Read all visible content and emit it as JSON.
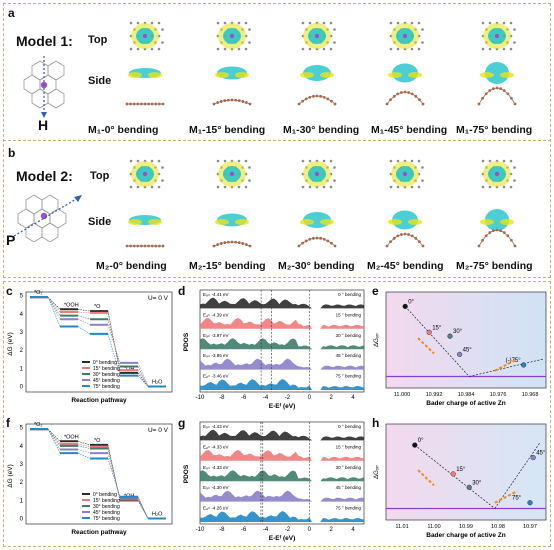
{
  "panels": {
    "a": {
      "letter": "a",
      "model_title": "Model 1:",
      "row_top": "Top",
      "row_side": "Side",
      "axis_letter": "H",
      "captions": [
        "M₁-0° bending",
        "M₁-15° bending",
        "M₁-30° bending",
        "M₁-45° bending",
        "M₁-75° bending"
      ]
    },
    "b": {
      "letter": "b",
      "model_title": "Model 2:",
      "row_top": "Top",
      "row_side": "Side",
      "axis_letter": "P",
      "captions": [
        "M₂-0° bending",
        "M₂-15° bending",
        "M₂-30° bending",
        "M₂-45° bending",
        "M₂-75° bending"
      ]
    },
    "c": {
      "letter": "c",
      "potential": "U= 0 V",
      "ylabel": "ΔG (eV)",
      "xlabel": "Reaction pathway",
      "species": [
        "*O₂",
        "*OOH",
        "*O",
        "*OH",
        "H₂O"
      ],
      "yticks": [
        "5",
        "4",
        "3",
        "2",
        "1",
        "0"
      ],
      "legend": [
        "0° bending",
        "15° bending",
        "30° bending",
        "45° bending",
        "75° bending"
      ]
    },
    "d": {
      "letter": "d",
      "ylabel": "PDOS",
      "xlabel": "E-Eᶠ (eV)",
      "xticks": [
        "-10",
        "-8",
        "-6",
        "-4",
        "-2",
        "0",
        "2",
        "4"
      ],
      "traces": [
        {
          "label": "0 ° bending",
          "ed": "Eₔ= -4.41 eV"
        },
        {
          "label": "15 ° bending",
          "ed": "Eₔ= -4.39 eV"
        },
        {
          "label": "30 ° bending",
          "ed": "Eₔ= -3.97 eV"
        },
        {
          "label": "45 ° bending",
          "ed": "Eₔ= -3.86 eV"
        },
        {
          "label": "75 ° bending",
          "ed": "Eₔ= -3.46 eV"
        }
      ]
    },
    "e": {
      "letter": "e",
      "ylabel": "ΔGₒᵣᵣ",
      "xlabel": "Bader charge of active Zn",
      "xticks": [
        "11.000",
        "10.992",
        "10.984",
        "10.976",
        "10.968"
      ],
      "points": [
        "0°",
        "15°",
        "30°",
        "45°",
        "(-)75°"
      ]
    },
    "f": {
      "letter": "f",
      "potential": "U= 0 V",
      "ylabel": "ΔG (eV)",
      "xlabel": "Reaction pathway",
      "species": [
        "*O₂",
        "*OOH",
        "*O",
        "*OH",
        "H₂O"
      ],
      "yticks": [
        "5",
        "4",
        "3",
        "2",
        "1",
        "0"
      ],
      "legend": [
        "0° bending",
        "15° bending",
        "30° bending",
        "45° bending",
        "75° bending"
      ]
    },
    "g": {
      "letter": "g",
      "ylabel": "PDOS",
      "xlabel": "E-Eᶠ (eV)",
      "xticks": [
        "-10",
        "-8",
        "-6",
        "-4",
        "-2",
        "0",
        "2",
        "4"
      ],
      "traces": [
        {
          "label": "0 ° bending",
          "ed": "Eₔ= -4.43 eV"
        },
        {
          "label": "15 ° bending",
          "ed": "Eₔ= -4.33 eV"
        },
        {
          "label": "30 ° bending",
          "ed": "Eₔ= -4.33 eV"
        },
        {
          "label": "45 ° bending",
          "ed": "Eₔ= -4.30 eV"
        },
        {
          "label": "75 ° bending",
          "ed": "Eₔ= -4.26 eV"
        }
      ]
    },
    "h": {
      "letter": "h",
      "ylabel": "ΔGₒᵣᵣ",
      "xlabel": "Bader charge of active Zn",
      "xticks": [
        "11.01",
        "11.00",
        "10.99",
        "10.98",
        "10.97"
      ],
      "points": [
        "0°",
        "15°",
        "30°",
        "45°",
        "75°"
      ]
    }
  },
  "colors": {
    "trace": [
      "#2b2b2b",
      "#f07a7a",
      "#3f7d6a",
      "#8a80c8",
      "#1f88c9"
    ],
    "isosurface_cyan": "#1ec3c9",
    "isosurface_yellow": "#e6e21a",
    "frame": "#c9b27a",
    "hline": "#8a3dd6",
    "arrow": "#f08a1c"
  }
}
